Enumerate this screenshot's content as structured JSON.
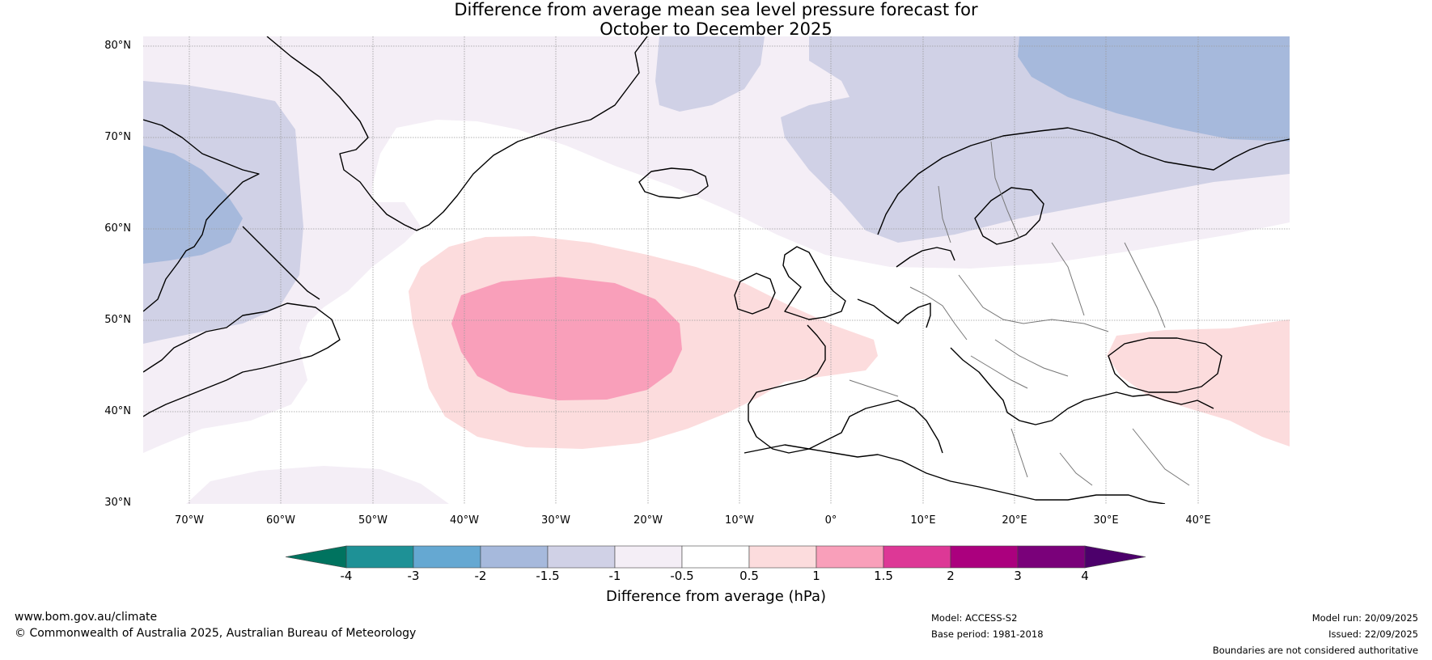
{
  "title": {
    "line1": "Difference from average mean sea level pressure forecast for",
    "line2": "October to December 2025"
  },
  "map": {
    "latitude_labels": [
      "80°N",
      "70°N",
      "60°N",
      "50°N",
      "40°N",
      "30°N"
    ],
    "longitude_labels": [
      "70°W",
      "60°W",
      "50°W",
      "40°W",
      "30°W",
      "20°W",
      "10°W",
      "0°",
      "10°E",
      "20°E",
      "30°E",
      "40°E"
    ],
    "extent": {
      "lon_min": -75,
      "lon_max": 50,
      "lat_min": 30,
      "lat_max": 81
    }
  },
  "legend": {
    "title": "Difference from average (hPa)",
    "ticks": [
      "-4",
      "-3",
      "-2",
      "-1.5",
      "-1",
      "-0.5",
      "0.5",
      "1",
      "1.5",
      "2",
      "3",
      "4"
    ],
    "colors": {
      "below_min": "#00735f",
      "bins": [
        "#1e9196",
        "#65a8d2",
        "#a6b9dc",
        "#d0d1e6",
        "#f4eef6",
        "#ffffff",
        "#fcdcdd",
        "#f99fba",
        "#dd3896",
        "#ab007e",
        "#7a017a"
      ],
      "above_max": "#4c006b"
    }
  },
  "footer": {
    "website": "www.bom.gov.au/climate",
    "copyright": "© Commonwealth of Australia 2025, Australian Bureau of Meteorology",
    "model": "Model: ACCESS-S2",
    "base_period": "Base period: 1981-2018",
    "model_run": "Model run: 20/09/2025",
    "issued": "Issued: 22/09/2025",
    "disclaimer": "Boundaries are not considered authoritative"
  }
}
